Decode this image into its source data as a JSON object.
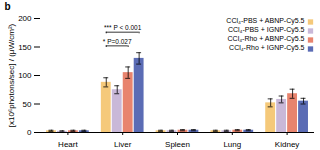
{
  "chart_data": {
    "type": "bar",
    "title": "b",
    "ylabel": "[x10⁶photons/sec] / (μW/cm²)",
    "categories": [
      "Heart",
      "Liver",
      "Spleen",
      "Lung",
      "Kidney"
    ],
    "series": [
      {
        "name": "CCl₄-PBS + ABNP-Cy5.5",
        "color": "#f5c97a",
        "values": [
          3,
          88,
          3,
          3,
          52
        ],
        "errors": [
          1,
          8,
          1,
          1,
          7
        ]
      },
      {
        "name": "CCl₄-PBS + IGNP-Cy5.5",
        "color": "#c9b8d8",
        "values": [
          2,
          75,
          3,
          3,
          58
        ],
        "errors": [
          1,
          7,
          1,
          1,
          6
        ]
      },
      {
        "name": "CCl₄-Rho + ABNP-Cy5.5",
        "color": "#e8846e",
        "values": [
          3,
          105,
          4,
          4,
          68
        ],
        "errors": [
          1,
          10,
          1,
          1,
          8
        ]
      },
      {
        "name": "CCl₄-Rho + IGNP-Cy5.5",
        "color": "#5b6cb5",
        "values": [
          3,
          130,
          4,
          4,
          55
        ],
        "errors": [
          1,
          10,
          1,
          1,
          5
        ]
      }
    ],
    "ylim": [
      0,
      200
    ],
    "yticks": [
      0,
      50,
      100,
      150,
      200
    ],
    "grid": false,
    "legend": "upper right",
    "annotations": [
      {
        "text": "*** P < 0.001",
        "category": "Liver",
        "from": "CCl₄-PBS + ABNP-Cy5.5",
        "to": "CCl₄-Rho + IGNP-Cy5.5"
      },
      {
        "text": "* P=0.027",
        "category": "Liver",
        "from": "CCl₄-PBS + ABNP-Cy5.5",
        "to": "CCl₄-Rho + ABNP-Cy5.5"
      }
    ]
  }
}
